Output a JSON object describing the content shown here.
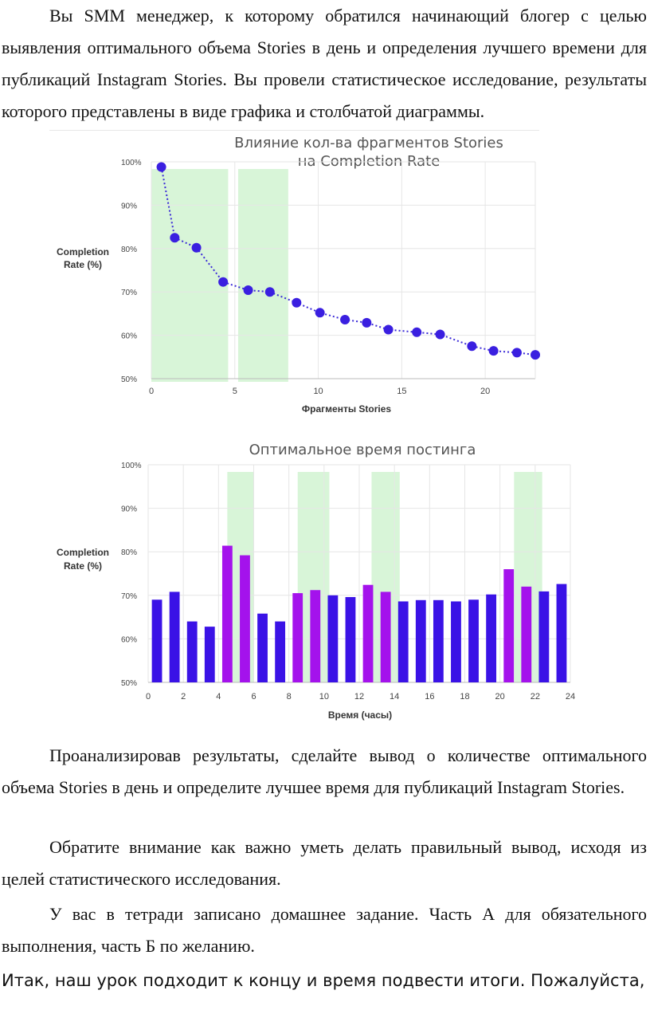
{
  "paragraphs": {
    "p1": "Вы SMM менеджер, к которому обратился начинающий блогер с целью выявления оптимального объема Stories в день и определения лучшего времени для публикаций Instagram Stories. Вы провели статистическое исследование, результаты которого представлены в виде графика и столбчатой диаграммы.",
    "p2": "Проанализировав результаты, сделайте вывод о количестве оптимального объема Stories в день и определите лучшее время для публикаций Instagram Stories.",
    "p3": "Обратите внимание как важно уметь делать правильный вывод, исходя из целей статистического исследования.",
    "p4": "У вас в тетради записано домашнее задание. Часть А для обязательного выполнения, часть Б по желанию.",
    "p5": "Итак, наш урок подходит к концу и время подвести итоги. Пожалуйста,"
  },
  "chart_data": [
    {
      "type": "line",
      "title_line1": "Влияние кол-ва фрагментов Stories",
      "title_line2": "на Completion Rate",
      "xlabel": "Фрагменты Stories",
      "ylabel_line1": "Completion",
      "ylabel_line2": "Rate (%)",
      "xlim": [
        0,
        23
      ],
      "ylim": [
        50,
        100
      ],
      "xticks": [
        0,
        5,
        10,
        15,
        20
      ],
      "yticks": [
        "50%",
        "60%",
        "70%",
        "80%",
        "90%",
        "100%"
      ],
      "highlight_ranges": [
        [
          0,
          4.6
        ],
        [
          5.2,
          8.2
        ]
      ],
      "line_color": "#3b2ad8",
      "marker_color": "#3a1fe0",
      "highlight_color": "#d8f5d8",
      "series": [
        {
          "x": [
            1,
            2,
            3,
            4,
            5,
            6,
            7,
            8,
            9,
            10,
            11,
            12,
            13,
            14,
            15,
            16,
            17,
            18
          ],
          "values": [
            98.8,
            82.5,
            80.2,
            72.3,
            70.4,
            70.0,
            67.5,
            65.2,
            63.6,
            62.9,
            61.3,
            60.7,
            60.2,
            57.5,
            56.4,
            56.0,
            55.5,
            55.0
          ]
        }
      ],
      "note_x_positions": [
        0.6,
        1.4,
        2.7,
        4.3,
        5.8,
        7.1,
        8.7,
        10.1,
        11.6,
        12.9,
        14.2,
        15.9,
        17.3,
        19.2,
        20.5,
        21.9,
        23.0,
        24.0
      ]
    },
    {
      "type": "bar",
      "title": "Оптимальное время постинга",
      "xlabel": "Время (часы)",
      "ylabel_line1": "Completion",
      "ylabel_line2": "Rate (%)",
      "xlim": [
        0,
        24
      ],
      "ylim": [
        50,
        100
      ],
      "xticks": [
        0,
        2,
        4,
        6,
        8,
        10,
        12,
        14,
        16,
        18,
        20,
        22,
        24
      ],
      "yticks": [
        "50%",
        "60%",
        "70%",
        "80%",
        "90%",
        "100%"
      ],
      "bar_color": "#3a12e6",
      "highlight_bar_color": "#a412ec",
      "highlight_color": "#d8f5d8",
      "highlight_ranges": [
        [
          4.5,
          6.0
        ],
        [
          8.5,
          10.3
        ],
        [
          12.7,
          14.3
        ],
        [
          20.8,
          22.4
        ]
      ],
      "categories": [
        0.5,
        1.5,
        2.5,
        3.5,
        4.5,
        5.5,
        6.5,
        7.5,
        8.5,
        9.5,
        10.5,
        11.5,
        12.5,
        13.5,
        14.5,
        15.5,
        16.5,
        17.5,
        18.5,
        19.5,
        20.5,
        21.5,
        22.5,
        23.5
      ],
      "values": [
        69,
        70.8,
        64,
        62.8,
        81.4,
        79.2,
        65.8,
        64,
        70.5,
        71.2,
        70,
        69.6,
        72.4,
        70.8,
        68.6,
        68.9,
        68.9,
        68.6,
        69,
        70.2,
        76,
        72,
        70.9,
        72.6
      ],
      "highlighted": [
        false,
        false,
        false,
        false,
        true,
        true,
        false,
        false,
        true,
        true,
        false,
        false,
        true,
        true,
        false,
        false,
        false,
        false,
        false,
        false,
        true,
        true,
        false,
        false
      ]
    }
  ]
}
